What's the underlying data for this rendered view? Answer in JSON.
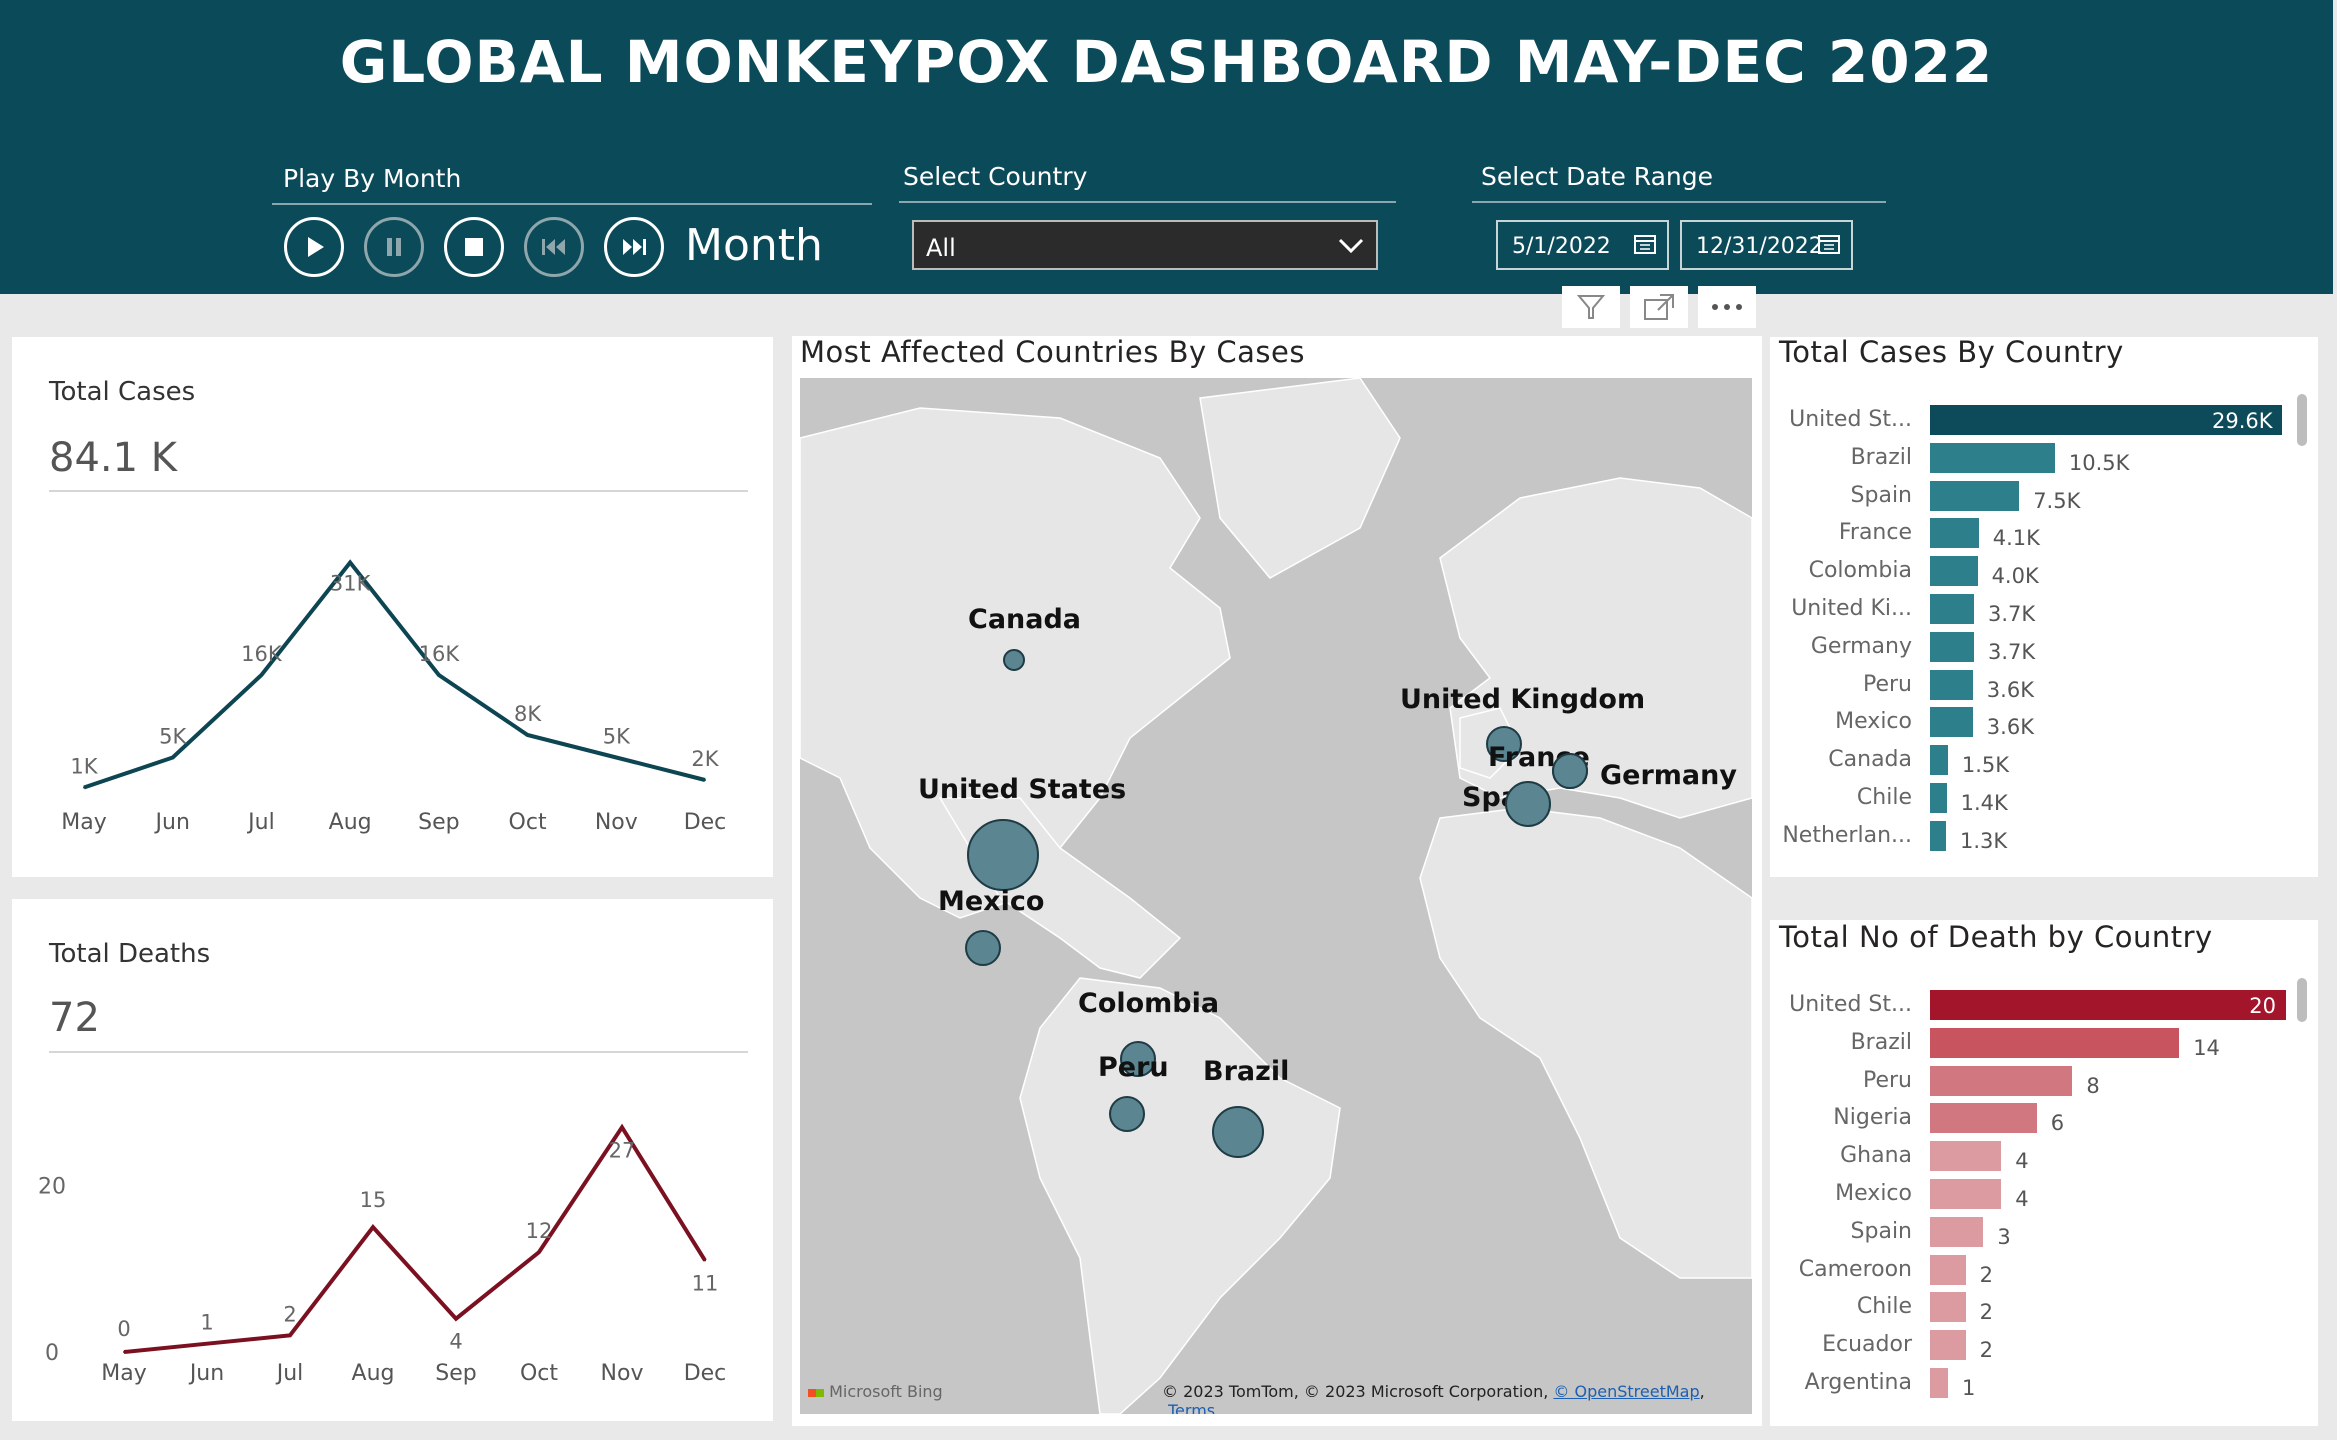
{
  "header": {
    "title": "GLOBAL MONKEYPOX DASHBOARD MAY-DEC 2022",
    "play_label": "Play By Month",
    "month_field": "Month",
    "country_label": "Select Country",
    "country_value": "All",
    "date_label": "Select Date Range",
    "date_start": "5/1/2022",
    "date_end": "12/31/2022"
  },
  "cases_card": {
    "title": "Total Cases",
    "kpi": "84.1 K"
  },
  "deaths_card": {
    "title": "Total Deaths",
    "kpi": "72"
  },
  "map": {
    "title": "Most Affected Countries By Cases",
    "countries": [
      {
        "name": "Canada",
        "cases": 1500
      },
      {
        "name": "United Kingdom",
        "cases": 3700
      },
      {
        "name": "France",
        "cases": 4100
      },
      {
        "name": "Germany",
        "cases": 3700
      },
      {
        "name": "Spain",
        "cases": 7500
      },
      {
        "name": "United States",
        "cases": 29600
      },
      {
        "name": "Mexico",
        "cases": 3600
      },
      {
        "name": "Colombia",
        "cases": 4000
      },
      {
        "name": "Peru",
        "cases": 3600
      },
      {
        "name": "Brazil",
        "cases": 10500
      }
    ],
    "attribution_logo": "Microsoft Bing",
    "copyright": "© 2023 TomTom, © 2023 Microsoft Corporation,",
    "osm_link": "© OpenStreetMap",
    "terms_link": "Terms"
  },
  "colors": {
    "header_bg": "#0b4a59",
    "cases_line": "#0d4552",
    "deaths_line": "#7a1020",
    "cases_bar_top": "#0d4a5a",
    "cases_bar": "#2e7f8c",
    "deaths_bar_top": "#a3152b",
    "deaths_bar_mid": "#c8545f",
    "deaths_bar_light": "#dc9ba0",
    "bubble": "#5a8591"
  },
  "chart_data": [
    {
      "type": "line",
      "title": "Total Cases",
      "categories": [
        "May",
        "Jun",
        "Jul",
        "Aug",
        "Sep",
        "Oct",
        "Nov",
        "Dec"
      ],
      "values": [
        1000,
        5000,
        16000,
        31000,
        16000,
        8000,
        5000,
        2000
      ],
      "labels": [
        "1K",
        "5K",
        "16K",
        "31K",
        "16K",
        "8K",
        "5K",
        "2K"
      ],
      "ylim": [
        0,
        32000
      ]
    },
    {
      "type": "line",
      "title": "Total Deaths",
      "categories": [
        "May",
        "Jun",
        "Jul",
        "Aug",
        "Sep",
        "Oct",
        "Nov",
        "Dec"
      ],
      "values": [
        0,
        1,
        2,
        15,
        4,
        12,
        27,
        11
      ],
      "labels": [
        "0",
        "1",
        "2",
        "15",
        "4",
        "12",
        "27",
        "11"
      ],
      "yticks": [
        "0",
        "20"
      ],
      "ylim": [
        0,
        28
      ]
    },
    {
      "type": "bar",
      "title": "Total Cases By Country",
      "categories": [
        "United St...",
        "Brazil",
        "Spain",
        "France",
        "Colombia",
        "United Ki...",
        "Germany",
        "Peru",
        "Mexico",
        "Canada",
        "Chile",
        "Netherlan..."
      ],
      "values": [
        29600,
        10500,
        7500,
        4100,
        4000,
        3700,
        3700,
        3600,
        3600,
        1500,
        1400,
        1300
      ],
      "labels": [
        "29.6K",
        "10.5K",
        "7.5K",
        "4.1K",
        "4.0K",
        "3.7K",
        "3.7K",
        "3.6K",
        "3.6K",
        "1.5K",
        "1.4K",
        "1.3K"
      ]
    },
    {
      "type": "bar",
      "title": "Total No of Death by Country",
      "categories": [
        "United St...",
        "Brazil",
        "Peru",
        "Nigeria",
        "Ghana",
        "Mexico",
        "Spain",
        "Cameroon",
        "Chile",
        "Ecuador",
        "Argentina"
      ],
      "values": [
        20,
        14,
        8,
        6,
        4,
        4,
        3,
        2,
        2,
        2,
        1
      ],
      "labels": [
        "20",
        "14",
        "8",
        "6",
        "4",
        "4",
        "3",
        "2",
        "2",
        "2",
        "1"
      ]
    }
  ]
}
